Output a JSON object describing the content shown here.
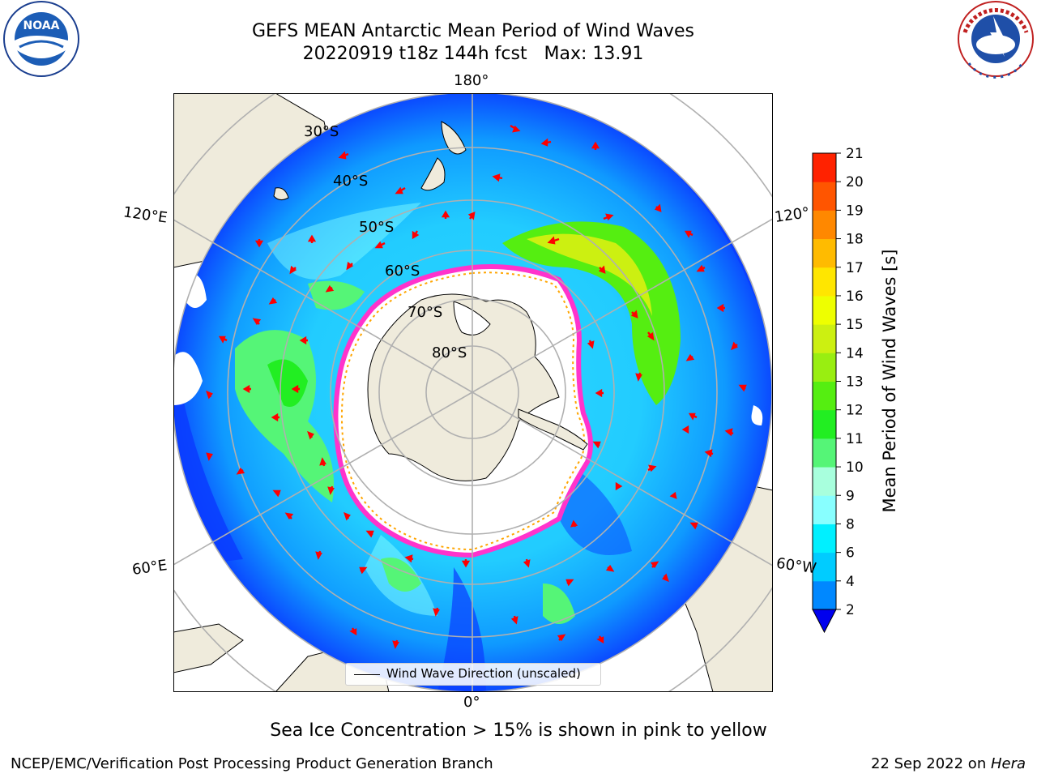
{
  "title": {
    "line1": "GEFS MEAN Antarctic Mean Period of Wind Waves",
    "line2": "20220919 t18z 144h fcst   Max: 13.91"
  },
  "logos": {
    "left": {
      "icon": "noaa-logo",
      "text": "NOAA"
    },
    "right": {
      "icon": "nws-logo",
      "text": "NATIONAL WEATHER SERVICE"
    }
  },
  "map": {
    "projection": "south-polar-stereographic",
    "longitude_labels": {
      "top": "180°",
      "bottom": "0°",
      "upper_left": "120°E",
      "upper_right": "120°",
      "lower_left": "60°E",
      "lower_right": "60°W"
    },
    "latitude_labels": [
      "30°S",
      "40°S",
      "50°S",
      "60°S",
      "70°S",
      "80°S"
    ],
    "land_color": "#efebdc",
    "ocean_nodata_color": "#ffffff",
    "ice_edge_colors": [
      "#ff33cc",
      "#ffa500",
      "#ffff66"
    ]
  },
  "legend": {
    "label": "Wind Wave Direction (unscaled)"
  },
  "colorbar": {
    "label": "Mean Period of Wind Waves [s]",
    "ticks": [
      "2",
      "4",
      "6",
      "8",
      "9",
      "10",
      "11",
      "12",
      "13",
      "14",
      "15",
      "16",
      "17",
      "18",
      "19",
      "20",
      "21"
    ],
    "colors": [
      "#0044ff",
      "#0088ff",
      "#00ccff",
      "#00f0ff",
      "#88ffff",
      "#a8ffdd",
      "#55f577",
      "#22ee22",
      "#55ee11",
      "#99ee11",
      "#ccf011",
      "#eeff00",
      "#ffe600",
      "#ffbb00",
      "#ff8800",
      "#ff5500",
      "#ff2200",
      "#ff0000"
    ],
    "under_color": "#0000ee"
  },
  "caption": "Sea Ice Concentration > 15% is shown in pink to yellow",
  "footer": {
    "left": "NCEP/EMC/Verification Post Processing Product Generation Branch",
    "right_date": "22 Sep 2022 on ",
    "right_host": "Hera"
  }
}
